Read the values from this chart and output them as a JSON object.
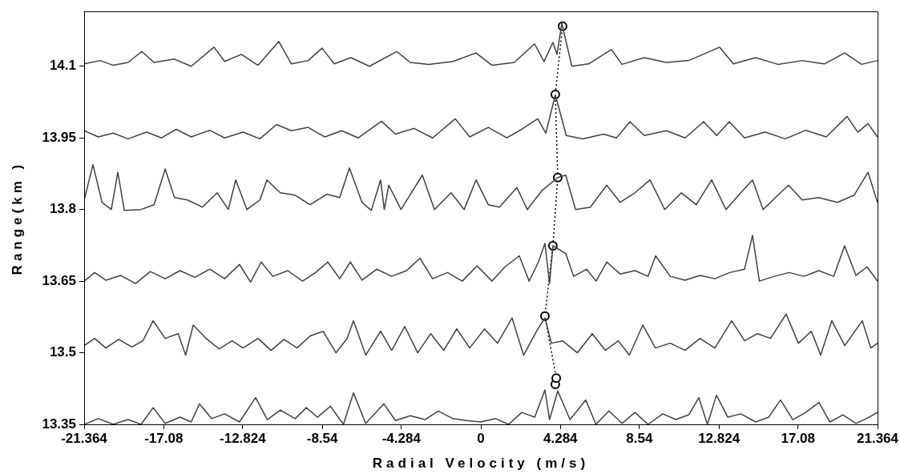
{
  "chart_data": {
    "type": "line",
    "xlabel": "Radial Velocity (m/s)",
    "ylabel": "Range(km )",
    "xlim": [
      -21.364,
      21.364
    ],
    "xticks": [
      -21.364,
      -17.08,
      -12.824,
      -8.54,
      -4.284,
      0,
      4.284,
      8.54,
      12.824,
      17.08,
      21.364
    ],
    "ylim": [
      13.35,
      14.215
    ],
    "yticks": [
      13.35,
      13.5,
      13.65,
      13.8,
      13.95,
      14.1
    ],
    "grid": false,
    "legend": false,
    "series": [
      {
        "color": "#404040",
        "marker": "none",
        "line_style": "solid",
        "x": [
          -21.36,
          -20.5,
          -19.8,
          -19.0,
          -18.26,
          -17.6,
          -16.5,
          -15.6,
          -14.37,
          -13.8,
          -12.9,
          -12.0,
          -10.88,
          -10.2,
          -9.3,
          -8.55,
          -7.9,
          -7.0,
          -6.0,
          -4.53,
          -3.8,
          -2.8,
          -1.5,
          -0.26,
          0.6,
          1.8,
          2.89,
          3.4,
          3.88,
          4.1,
          4.36,
          4.9,
          5.8,
          7.03,
          7.6,
          8.8,
          10.0,
          11.2,
          12.86,
          13.6,
          14.8,
          16.0,
          17.3,
          18.5,
          19.59,
          20.5,
          21.36
        ],
        "values": [
          14.105,
          14.112,
          14.102,
          14.108,
          14.131,
          14.108,
          14.115,
          14.1,
          14.14,
          14.11,
          14.125,
          14.102,
          14.152,
          14.105,
          14.112,
          14.138,
          14.105,
          14.118,
          14.1,
          14.131,
          14.108,
          14.104,
          14.11,
          14.128,
          14.102,
          14.108,
          14.147,
          14.11,
          14.15,
          14.125,
          14.19,
          14.1,
          14.105,
          14.135,
          14.104,
          14.118,
          14.108,
          14.112,
          14.14,
          14.105,
          14.118,
          14.104,
          14.112,
          14.105,
          14.128,
          14.104,
          14.112
        ]
      },
      {
        "color": "#404040",
        "marker": "none",
        "line_style": "solid",
        "x": [
          -21.36,
          -20.6,
          -19.8,
          -19.0,
          -18.0,
          -17.2,
          -16.4,
          -15.6,
          -14.6,
          -13.8,
          -12.8,
          -11.9,
          -11.0,
          -10.2,
          -9.3,
          -8.4,
          -7.5,
          -6.6,
          -5.35,
          -4.6,
          -3.6,
          -2.6,
          -1.38,
          -0.6,
          0.4,
          1.4,
          2.2,
          3.06,
          3.5,
          4.01,
          4.6,
          5.5,
          6.6,
          7.3,
          8.03,
          8.8,
          10.0,
          11.0,
          12.0,
          12.7,
          13.38,
          14.2,
          15.3,
          16.4,
          17.5,
          18.6,
          19.72,
          20.3,
          20.85,
          21.36
        ],
        "values": [
          13.965,
          13.952,
          13.96,
          13.948,
          13.962,
          13.95,
          13.968,
          13.952,
          13.966,
          13.95,
          13.962,
          13.948,
          13.978,
          13.965,
          13.972,
          13.952,
          13.965,
          13.95,
          13.985,
          13.958,
          13.97,
          13.95,
          13.99,
          13.952,
          13.972,
          13.95,
          13.968,
          13.99,
          13.96,
          14.04,
          13.955,
          13.948,
          13.958,
          13.95,
          13.984,
          13.955,
          13.965,
          13.95,
          13.984,
          13.955,
          13.984,
          13.95,
          13.962,
          13.948,
          13.966,
          13.952,
          13.995,
          13.962,
          13.98,
          13.952
        ]
      },
      {
        "color": "#404040",
        "marker": "none",
        "line_style": "solid",
        "x": [
          -21.36,
          -20.89,
          -20.4,
          -19.9,
          -19.55,
          -19.2,
          -18.3,
          -17.6,
          -17.0,
          -16.5,
          -15.8,
          -15.0,
          -14.2,
          -13.6,
          -13.2,
          -12.6,
          -11.9,
          -11.52,
          -10.8,
          -10.0,
          -9.2,
          -8.3,
          -7.6,
          -7.08,
          -6.4,
          -5.9,
          -5.4,
          -5.2,
          -4.96,
          -4.3,
          -3.15,
          -2.5,
          -1.6,
          -0.9,
          -0.26,
          0.4,
          1.0,
          1.94,
          2.5,
          3.3,
          4.14,
          4.57,
          5.1,
          5.9,
          6.78,
          7.5,
          8.3,
          9.11,
          9.9,
          10.8,
          11.6,
          12.43,
          13.2,
          14.0,
          14.63,
          15.2,
          16.0,
          16.57,
          17.3,
          18.2,
          19.2,
          20.1,
          20.85,
          21.36
        ],
        "values": [
          13.82,
          13.894,
          13.815,
          13.8,
          13.878,
          13.798,
          13.8,
          13.81,
          13.885,
          13.825,
          13.82,
          13.805,
          13.835,
          13.8,
          13.862,
          13.8,
          13.82,
          13.862,
          13.835,
          13.83,
          13.81,
          13.832,
          13.825,
          13.887,
          13.815,
          13.798,
          13.862,
          13.8,
          13.851,
          13.8,
          13.872,
          13.8,
          13.835,
          13.8,
          13.862,
          13.81,
          13.805,
          13.846,
          13.8,
          13.84,
          13.867,
          13.872,
          13.8,
          13.805,
          13.851,
          13.815,
          13.835,
          13.862,
          13.8,
          13.835,
          13.81,
          13.862,
          13.8,
          13.835,
          13.862,
          13.8,
          13.83,
          13.851,
          13.82,
          13.825,
          13.815,
          13.83,
          13.878,
          13.815
        ]
      },
      {
        "color": "#404040",
        "marker": "none",
        "line_style": "solid",
        "x": [
          -21.36,
          -20.8,
          -20.2,
          -19.4,
          -18.6,
          -17.8,
          -17.0,
          -16.2,
          -15.4,
          -14.6,
          -13.8,
          -13.0,
          -12.4,
          -11.83,
          -11.2,
          -10.4,
          -9.6,
          -8.9,
          -8.24,
          -7.6,
          -7.03,
          -6.4,
          -5.6,
          -4.8,
          -4.0,
          -3.28,
          -2.6,
          -1.8,
          -1.0,
          -0.2,
          0.6,
          1.3,
          2.07,
          2.6,
          3.1,
          3.45,
          3.7,
          3.88,
          4.57,
          5.0,
          5.7,
          6.2,
          6.78,
          7.5,
          8.3,
          9.0,
          9.41,
          10.2,
          11.0,
          11.8,
          12.6,
          13.4,
          14.2,
          14.63,
          15.0,
          15.8,
          16.6,
          17.4,
          18.2,
          19.0,
          19.59,
          20.2,
          20.8,
          21.36
        ],
        "values": [
          13.65,
          13.668,
          13.652,
          13.662,
          13.645,
          13.67,
          13.655,
          13.672,
          13.658,
          13.675,
          13.655,
          13.685,
          13.648,
          13.69,
          13.66,
          13.672,
          13.65,
          13.668,
          13.69,
          13.655,
          13.69,
          13.652,
          13.675,
          13.66,
          13.672,
          13.698,
          13.655,
          13.668,
          13.65,
          13.682,
          13.65,
          13.68,
          13.703,
          13.65,
          13.69,
          13.729,
          13.645,
          13.724,
          13.708,
          13.66,
          13.675,
          13.65,
          13.69,
          13.665,
          13.672,
          13.66,
          13.703,
          13.66,
          13.652,
          13.662,
          13.655,
          13.668,
          13.675,
          13.746,
          13.65,
          13.66,
          13.668,
          13.66,
          13.672,
          13.66,
          13.724,
          13.662,
          13.68,
          13.65
        ]
      },
      {
        "color": "#404040",
        "marker": "none",
        "line_style": "solid",
        "x": [
          -21.36,
          -20.8,
          -20.2,
          -19.5,
          -18.8,
          -18.2,
          -17.65,
          -17.0,
          -16.3,
          -15.9,
          -15.49,
          -14.8,
          -14.1,
          -13.4,
          -12.8,
          -12.0,
          -11.3,
          -10.6,
          -9.9,
          -9.2,
          -8.5,
          -7.8,
          -7.2,
          -6.86,
          -6.2,
          -5.4,
          -4.8,
          -4.1,
          -3.4,
          -2.7,
          -2.0,
          -1.3,
          -0.6,
          0.2,
          0.9,
          1.68,
          2.3,
          3.0,
          3.45,
          3.8,
          4.4,
          5.2,
          6.0,
          6.7,
          7.4,
          8.0,
          8.72,
          9.4,
          10.2,
          11.0,
          11.8,
          12.6,
          13.51,
          14.2,
          14.9,
          15.6,
          16.44,
          17.1,
          17.8,
          18.3,
          18.9,
          19.6,
          20.54,
          21.0,
          21.36
        ],
        "values": [
          13.515,
          13.53,
          13.51,
          13.528,
          13.512,
          13.525,
          13.567,
          13.53,
          13.54,
          13.495,
          13.558,
          13.53,
          13.508,
          13.525,
          13.51,
          13.53,
          13.505,
          13.528,
          13.51,
          13.535,
          13.545,
          13.5,
          13.53,
          13.567,
          13.495,
          13.545,
          13.505,
          13.555,
          13.5,
          13.54,
          13.505,
          13.55,
          13.51,
          13.55,
          13.52,
          13.573,
          13.495,
          13.545,
          13.573,
          13.52,
          13.525,
          13.5,
          13.54,
          13.505,
          13.525,
          13.495,
          13.558,
          13.51,
          13.52,
          13.505,
          13.53,
          13.51,
          13.567,
          13.525,
          13.54,
          13.53,
          13.581,
          13.52,
          13.545,
          13.495,
          13.567,
          13.515,
          13.567,
          13.51,
          13.52
        ]
      },
      {
        "color": "#404040",
        "marker": "none",
        "line_style": "solid",
        "x": [
          -21.36,
          -20.6,
          -19.8,
          -19.0,
          -18.3,
          -17.65,
          -17.0,
          -16.2,
          -15.6,
          -15.15,
          -14.5,
          -13.8,
          -13.0,
          -12.13,
          -11.5,
          -10.8,
          -10.0,
          -9.4,
          -8.8,
          -8.1,
          -7.4,
          -6.86,
          -6.2,
          -5.22,
          -4.6,
          -3.8,
          -3.0,
          -2.3,
          -1.5,
          -0.8,
          0.0,
          0.8,
          1.5,
          2.2,
          2.9,
          3.45,
          3.7,
          4.14,
          4.8,
          5.65,
          6.2,
          6.9,
          7.6,
          8.3,
          9.0,
          9.8,
          10.5,
          11.2,
          11.74,
          12.2,
          12.69,
          13.3,
          14.0,
          14.8,
          15.5,
          16.14,
          16.8,
          17.5,
          18.21,
          18.8,
          19.5,
          20.2,
          20.9,
          21.36
        ],
        "values": [
          13.35,
          13.362,
          13.35,
          13.36,
          13.35,
          13.385,
          13.352,
          13.365,
          13.355,
          13.393,
          13.362,
          13.372,
          13.355,
          13.406,
          13.36,
          13.38,
          13.362,
          13.385,
          13.365,
          13.388,
          13.35,
          13.416,
          13.352,
          13.393,
          13.358,
          13.368,
          13.36,
          13.378,
          13.362,
          13.358,
          13.355,
          13.362,
          13.35,
          13.375,
          13.365,
          13.422,
          13.36,
          13.42,
          13.36,
          13.401,
          13.35,
          13.378,
          13.352,
          13.375,
          13.35,
          13.372,
          13.36,
          13.37,
          13.406,
          13.35,
          13.411,
          13.365,
          13.372,
          13.355,
          13.365,
          13.401,
          13.36,
          13.375,
          13.396,
          13.355,
          13.37,
          13.352,
          13.365,
          13.375
        ]
      },
      {
        "color": "#000000",
        "marker": "circle",
        "line_style": "dotted",
        "x": [
          4.01,
          4.06,
          3.45,
          3.88,
          4.14,
          4.01,
          4.4
        ],
        "values": [
          13.434,
          13.447,
          13.577,
          13.724,
          13.867,
          14.041,
          14.184
        ]
      }
    ]
  }
}
